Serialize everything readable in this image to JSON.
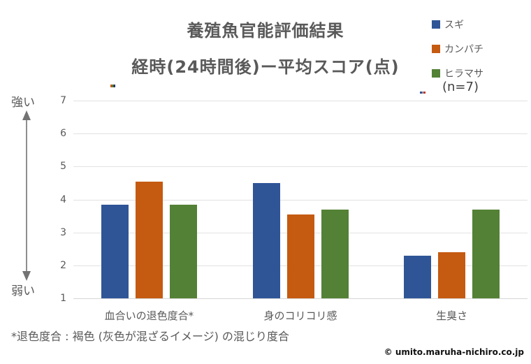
{
  "title": {
    "line1": "養殖魚官能評価結果",
    "line2": "経時(24時間後)ー平均スコア(点)"
  },
  "legend": {
    "items": [
      {
        "label": "スギ",
        "color": "#2F5597"
      },
      {
        "label": "カンパチ",
        "color": "#C55A11"
      },
      {
        "label": "ヒラマサ",
        "color": "#538135"
      }
    ],
    "note": "(n=7)"
  },
  "axis": {
    "top_label": "強い",
    "bottom_label": "弱い",
    "min": 1,
    "max": 7,
    "ticks": [
      7,
      6,
      5,
      4,
      3,
      2,
      1
    ]
  },
  "chart_data": {
    "type": "bar",
    "title": "養殖魚官能評価結果 経時(24時間後)ー平均スコア(点)",
    "categories": [
      "血合いの退色度合*",
      "身のコリコリ感",
      "生臭さ"
    ],
    "series": [
      {
        "name": "スギ",
        "color": "#2F5597",
        "values": [
          3.85,
          4.5,
          2.3
        ]
      },
      {
        "name": "カンパチ",
        "color": "#C55A11",
        "values": [
          4.55,
          3.55,
          2.4
        ]
      },
      {
        "name": "ヒラマサ",
        "color": "#538135",
        "values": [
          3.85,
          3.7,
          3.7
        ]
      }
    ],
    "ylabel": "平均スコア(点)",
    "ylim": [
      1,
      7
    ],
    "grid": true,
    "legend_position": "top-right",
    "sample_size": "(n=7)"
  },
  "footnote": "*退色度合 : 褐色 (灰色が混ざるイメージ) の混じり度合",
  "copyright": "© umito.maruha-nichiro.co.jp",
  "icons": {
    "axis_arrow": "double-headed-vertical-arrow",
    "arrow_color": "#737373"
  }
}
